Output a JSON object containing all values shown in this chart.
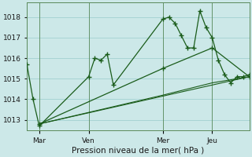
{
  "background_color": "#cce8e8",
  "grid_color": "#99cccc",
  "line_color": "#1a5c1a",
  "title": "Pression niveau de la mer( hPa )",
  "ylabel_ticks": [
    1013,
    1014,
    1015,
    1016,
    1017,
    1018
  ],
  "xlim": [
    0,
    108
  ],
  "ylim": [
    1012.5,
    1018.7
  ],
  "xtick_positions": [
    6,
    30,
    66,
    90
  ],
  "xtick_labels": [
    "Mar",
    "Ven",
    "Mer",
    "Jeu"
  ],
  "vlines": [
    6,
    30,
    66,
    90
  ],
  "series1_x": [
    0,
    3,
    6,
    30,
    33,
    36,
    39,
    42,
    66,
    69,
    72,
    75,
    78,
    81,
    84,
    87,
    90,
    93,
    96,
    99,
    102,
    105,
    108
  ],
  "series1_y": [
    1015.7,
    1014.0,
    1012.7,
    1015.1,
    1016.0,
    1015.9,
    1016.2,
    1014.7,
    1017.9,
    1018.0,
    1017.7,
    1017.1,
    1016.5,
    1016.5,
    1018.3,
    1017.5,
    1017.0,
    1015.9,
    1015.2,
    1014.8,
    1015.1,
    1015.1,
    1015.2
  ],
  "series2_x": [
    6,
    66,
    90,
    108
  ],
  "series2_y": [
    1012.8,
    1015.5,
    1016.5,
    1015.1
  ],
  "series3_x": [
    6,
    66,
    90,
    108
  ],
  "series3_y": [
    1012.8,
    1014.2,
    1014.8,
    1015.1
  ],
  "series4_x": [
    6,
    108
  ],
  "series4_y": [
    1012.8,
    1015.1
  ]
}
